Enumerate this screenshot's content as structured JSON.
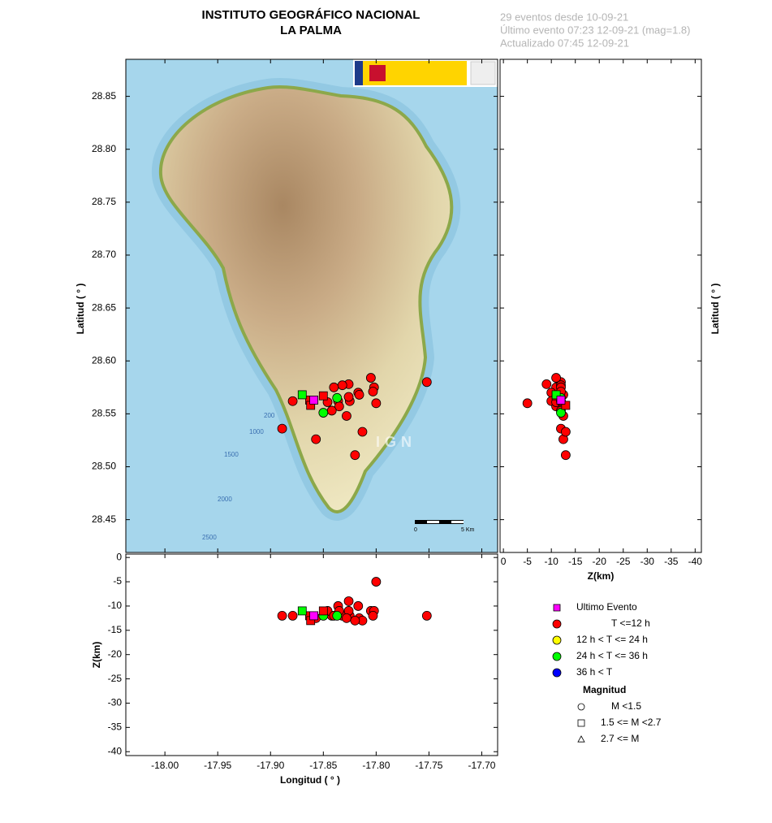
{
  "header": {
    "title": "INSTITUTO GEOGRÁFICO NACIONAL",
    "subtitle": "LA PALMA",
    "info": [
      "29 eventos desde 10-09-21",
      "Último evento 07:23 12-09-21  (mag=1.8)",
      "Actualizado   07:45  12-09-21"
    ]
  },
  "chart_data": {
    "type": "scatter",
    "xlabel": "Longitud ( ° )",
    "ylabel": "Latitud ( ° )",
    "zlabel": "Z(km)",
    "xlim": [
      -18.037,
      -17.685
    ],
    "ylim": [
      28.419,
      28.885
    ],
    "zlim": [
      0.7,
      -41.3
    ],
    "z2lim": [
      0.7,
      -40.8
    ],
    "xticks": [
      {
        "value": -18.0,
        "label": "-18.00"
      },
      -17.95,
      {
        "value": -17.9,
        "label": "-17.90"
      },
      -17.85,
      {
        "value": -17.8,
        "label": "-17.80"
      },
      -17.75,
      {
        "value": -17.7,
        "label": "-17.70"
      }
    ],
    "yticks": [
      28.45,
      {
        "value": 28.5,
        "label": "28.50"
      },
      28.55,
      {
        "value": 28.6,
        "label": "28.60"
      },
      28.65,
      {
        "value": 28.7,
        "label": "28.70"
      },
      28.75,
      {
        "value": 28.8,
        "label": "28.80"
      },
      28.85
    ],
    "zticks": [
      0,
      -5,
      -10,
      -15,
      -20,
      -25,
      -30,
      -35,
      -40
    ],
    "series": [
      {
        "name": "T <=12 h",
        "color": "#ff0000",
        "lon": [
          -17.752,
          -17.805,
          -17.802,
          -17.8,
          -17.817,
          -17.816,
          -17.826,
          -17.832,
          -17.825,
          -17.826,
          -17.836,
          -17.835,
          -17.828,
          -17.842,
          -17.846,
          -17.879,
          -17.889,
          -17.857,
          -17.813,
          -17.82,
          -17.84,
          -17.803,
          -17.85,
          -17.863,
          -17.862
        ],
        "lat": [
          28.58,
          28.584,
          28.575,
          28.56,
          28.57,
          28.568,
          28.578,
          28.577,
          28.562,
          28.566,
          28.562,
          28.557,
          28.548,
          28.553,
          28.561,
          28.562,
          28.536,
          28.526,
          28.533,
          28.511,
          28.575,
          28.571,
          28.567,
          28.563,
          28.558
        ],
        "depth": [
          -12,
          -11,
          -11,
          -5,
          -10,
          -12.5,
          -9,
          -12,
          -12,
          -11,
          -10,
          -11,
          -12.5,
          -12,
          -11,
          -12,
          -12,
          -12.5,
          -13,
          -13,
          -12,
          -12,
          -11,
          -12,
          -13
        ],
        "shape": [
          "circle",
          "circle",
          "circle",
          "circle",
          "circle",
          "circle",
          "circle",
          "circle",
          "circle",
          "circle",
          "circle",
          "circle",
          "circle",
          "circle",
          "circle",
          "circle",
          "circle",
          "circle",
          "circle",
          "circle",
          "circle",
          "circle",
          "square",
          "square",
          "square"
        ]
      },
      {
        "name": "12 h  < T <= 24 h",
        "color": "#ffff00",
        "lon": [],
        "lat": [],
        "depth": [],
        "shape": []
      },
      {
        "name": "24 h  < T <= 36 h",
        "color": "#00ff00",
        "lon": [
          -17.87,
          -17.85,
          -17.837
        ],
        "lat": [
          28.568,
          28.551,
          28.565
        ],
        "depth": [
          -11,
          -12,
          -12
        ],
        "shape": [
          "square",
          "circle",
          "circle"
        ]
      },
      {
        "name": "36 h <  T",
        "color": "#0000ff",
        "lon": [],
        "lat": [],
        "depth": [],
        "shape": []
      },
      {
        "name": "Ultimo Evento",
        "color": "#ff00ff",
        "lon": [
          -17.859
        ],
        "lat": [
          28.563
        ],
        "depth": [
          -12
        ],
        "shape": [
          "square"
        ]
      }
    ],
    "legend_order": [
      4,
      0,
      1,
      2,
      3
    ],
    "magnitude_title": "Magnitud",
    "magnitude_classes": [
      {
        "label": "M <1.5",
        "shape": "circle"
      },
      {
        "label": "1.5 <= M <2.7",
        "shape": "square"
      },
      {
        "label": "2.7 <= M",
        "shape": "triangle"
      }
    ]
  },
  "map": {
    "watermark": "IGN",
    "contours": [
      "200",
      "1000",
      "1500",
      "2000",
      "2500"
    ],
    "scale": [
      "0",
      "5 Km"
    ]
  }
}
